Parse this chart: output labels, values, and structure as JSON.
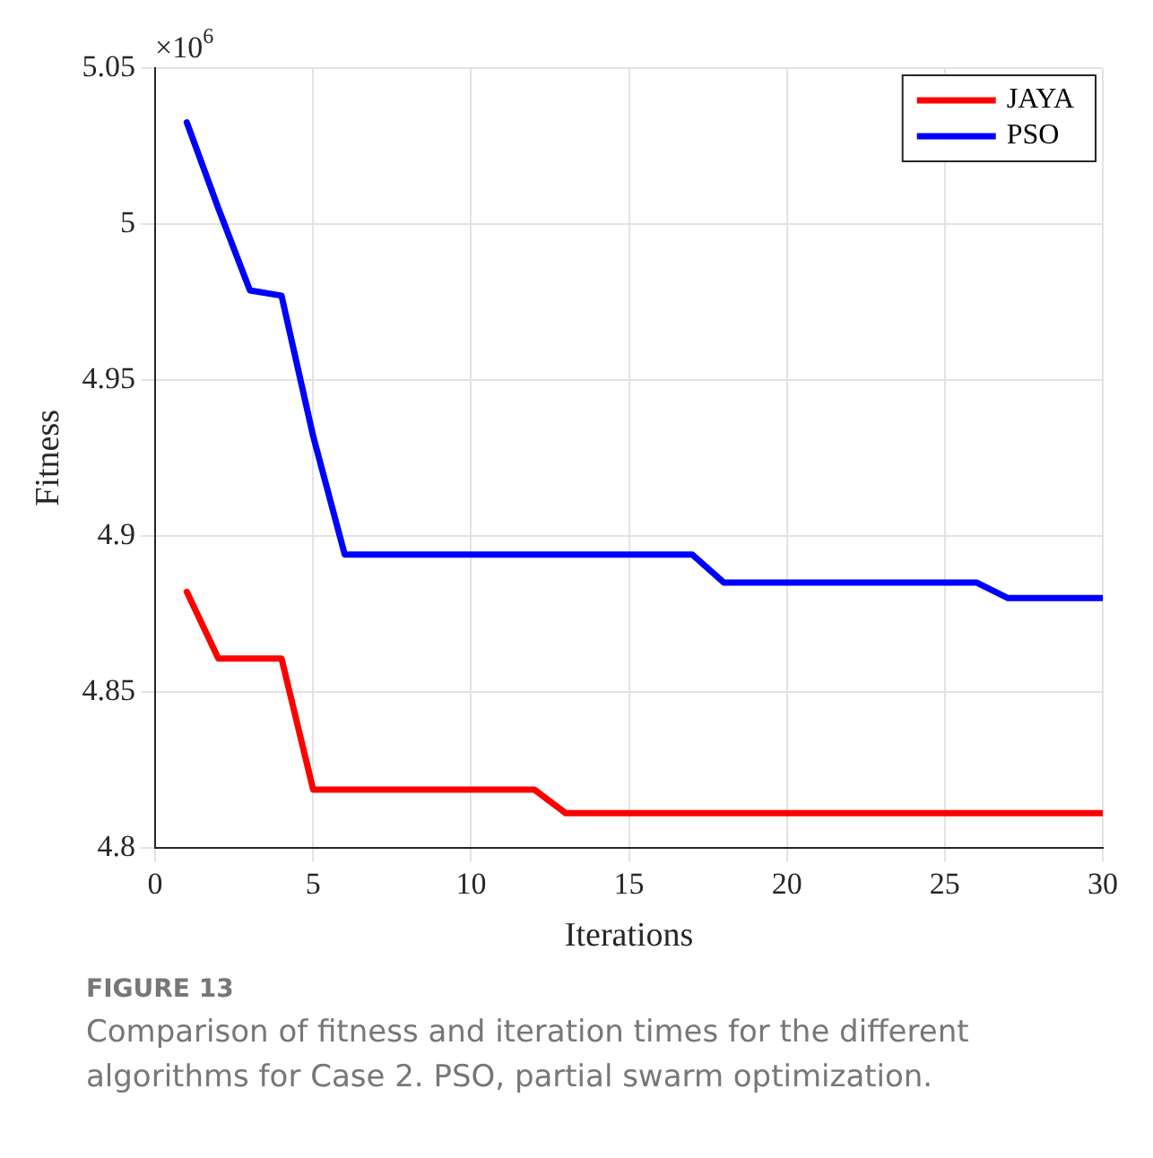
{
  "chart_data": {
    "type": "line",
    "xlabel": "Iterations",
    "ylabel": "Fitness",
    "x": [
      1,
      2,
      3,
      4,
      5,
      6,
      7,
      8,
      9,
      10,
      11,
      12,
      13,
      14,
      15,
      16,
      17,
      18,
      19,
      20,
      21,
      22,
      23,
      24,
      25,
      26,
      27,
      28,
      29,
      30
    ],
    "series": [
      {
        "name": "JAYA",
        "color": "#ff0000",
        "values": [
          4.882,
          4.8606,
          4.8606,
          4.8606,
          4.8186,
          4.8186,
          4.8186,
          4.8186,
          4.8186,
          4.8186,
          4.8186,
          4.8186,
          4.811,
          4.811,
          4.811,
          4.811,
          4.811,
          4.811,
          4.811,
          4.811,
          4.811,
          4.811,
          4.811,
          4.811,
          4.811,
          4.811,
          4.811,
          4.811,
          4.811,
          4.811
        ]
      },
      {
        "name": "PSO",
        "color": "#0000ff",
        "values": [
          5.0326,
          5.005,
          4.9787,
          4.977,
          4.932,
          4.894,
          4.894,
          4.894,
          4.894,
          4.894,
          4.894,
          4.894,
          4.894,
          4.894,
          4.894,
          4.894,
          4.894,
          4.885,
          4.885,
          4.885,
          4.885,
          4.885,
          4.885,
          4.885,
          4.885,
          4.885,
          4.88,
          4.88,
          4.88,
          4.88
        ]
      }
    ],
    "xlim": [
      0,
      30
    ],
    "xticks": [
      0,
      5,
      10,
      15,
      20,
      25,
      30
    ],
    "ylim": [
      4.8,
      5.05
    ],
    "yticks": [
      4.8,
      4.85,
      4.9,
      4.95,
      5,
      5.05
    ],
    "grid": true,
    "legend": "top right",
    "marker": "none",
    "line_style": "solid",
    "annotations": [
      "×10$^{6}$",
      "FIGURE 13",
      "Comparison of fitness and iteration times for the different algorithms for Case 2. PSO, partial swarm optimization."
    ]
  }
}
